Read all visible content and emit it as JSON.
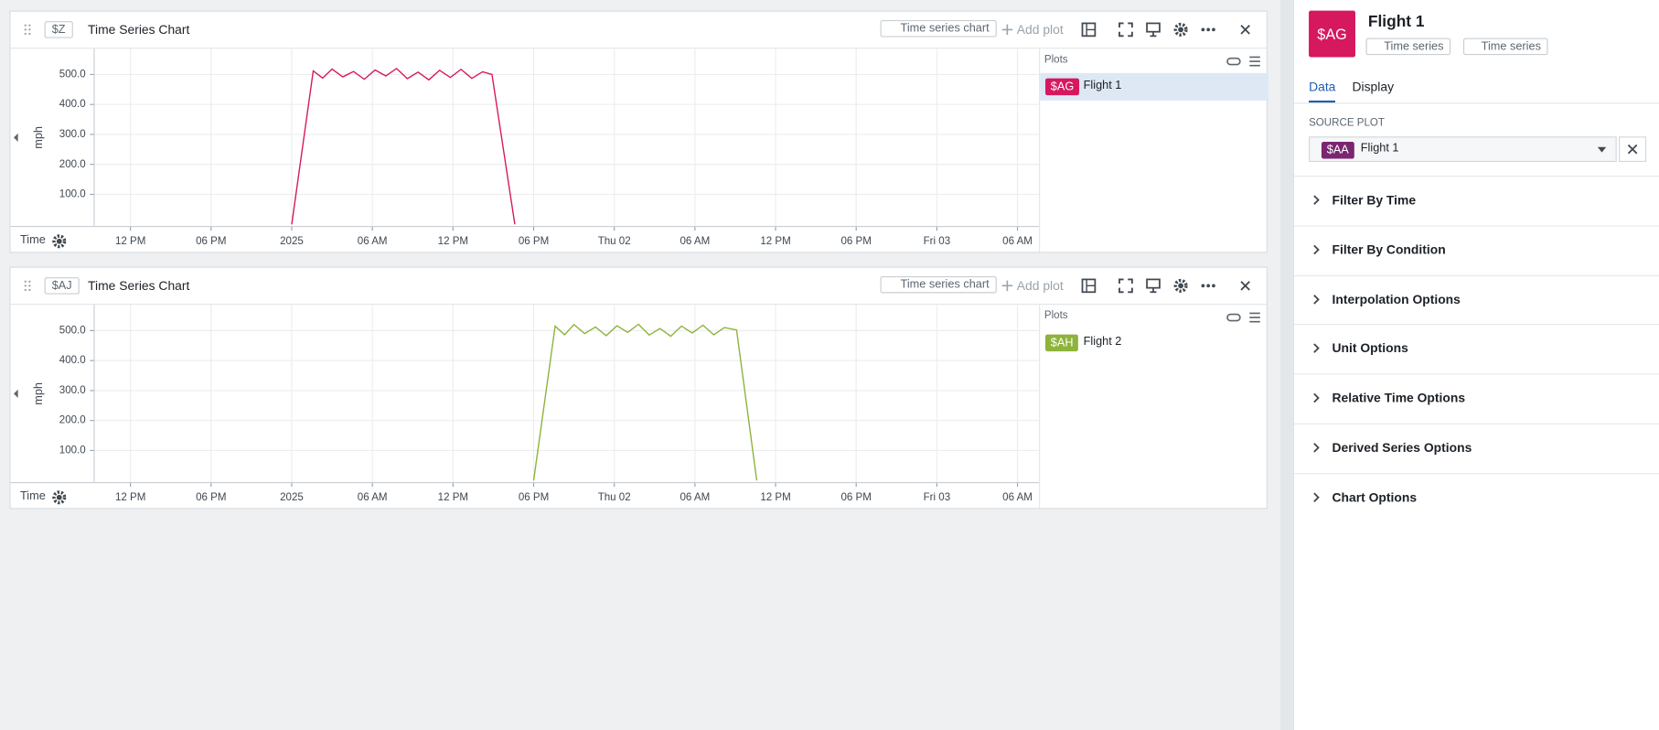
{
  "panels": [
    {
      "tag": "$Z",
      "title": "Time Series Chart",
      "chart_type_button": "Time series chart",
      "add_plot": "Add plot",
      "plots_header": "Plots",
      "plot_tags": [
        "$AG"
      ],
      "x_axis_label": "Time",
      "chart_data": {
        "type": "line",
        "y_label": "mph",
        "xlim": [
          9.3,
          79.6
        ],
        "xticks": [
          {
            "value": 12,
            "label": "12 PM"
          },
          {
            "value": 18,
            "label": "06 PM"
          },
          {
            "value": 24,
            "label": "2025"
          },
          {
            "value": 30,
            "label": "06 AM"
          },
          {
            "value": 36,
            "label": "12 PM"
          },
          {
            "value": 42,
            "label": "06 PM"
          },
          {
            "value": 48,
            "label": "Thu 02"
          },
          {
            "value": 54,
            "label": "06 AM"
          },
          {
            "value": 60,
            "label": "12 PM"
          },
          {
            "value": 66,
            "label": "06 PM"
          },
          {
            "value": 72,
            "label": "Fri 03"
          },
          {
            "value": 78,
            "label": "06 AM"
          }
        ],
        "ylim": [
          -7,
          586
        ],
        "yticks": [
          {
            "value": 100,
            "label": "100.0"
          },
          {
            "value": 200,
            "label": "200.0"
          },
          {
            "value": 300,
            "label": "300.0"
          },
          {
            "value": 400,
            "label": "400.0"
          },
          {
            "value": 500,
            "label": "500.0"
          }
        ],
        "grid": true,
        "series": [
          {
            "name": "Flight 1",
            "color": "#d6185f",
            "x": [
              24,
              25.6,
              26.3,
              27,
              27.8,
              28.6,
              29.4,
              30.2,
              31,
              31.8,
              32.6,
              33.4,
              34.2,
              35,
              35.8,
              36.6,
              37.4,
              38.2,
              38.9,
              40.6
            ],
            "values": [
              0,
              512,
              488,
              518,
              492,
              510,
              484,
              515,
              495,
              520,
              486,
              508,
              482,
              514,
              490,
              517,
              487,
              509,
              500,
              0
            ]
          }
        ]
      }
    },
    {
      "tag": "$AJ",
      "title": "Time Series Chart",
      "chart_type_button": "Time series chart",
      "add_plot": "Add plot",
      "plots_header": "Plots",
      "plot_tags": [
        "$AH"
      ],
      "x_axis_label": "Time",
      "chart_data": {
        "type": "line",
        "y_label": "mph",
        "xlim": [
          9.3,
          79.6
        ],
        "xticks": [
          {
            "value": 12,
            "label": "12 PM"
          },
          {
            "value": 18,
            "label": "06 PM"
          },
          {
            "value": 24,
            "label": "2025"
          },
          {
            "value": 30,
            "label": "06 AM"
          },
          {
            "value": 36,
            "label": "12 PM"
          },
          {
            "value": 42,
            "label": "06 PM"
          },
          {
            "value": 48,
            "label": "Thu 02"
          },
          {
            "value": 54,
            "label": "06 AM"
          },
          {
            "value": 60,
            "label": "12 PM"
          },
          {
            "value": 66,
            "label": "06 PM"
          },
          {
            "value": 72,
            "label": "Fri 03"
          },
          {
            "value": 78,
            "label": "06 AM"
          }
        ],
        "ylim": [
          -7,
          586
        ],
        "yticks": [
          {
            "value": 100,
            "label": "100.0"
          },
          {
            "value": 200,
            "label": "200.0"
          },
          {
            "value": 300,
            "label": "300.0"
          },
          {
            "value": 400,
            "label": "400.0"
          },
          {
            "value": 500,
            "label": "500.0"
          }
        ],
        "grid": true,
        "series": [
          {
            "name": "Flight 2",
            "color": "#8db33b",
            "x": [
              42,
              43.6,
              44.3,
              45,
              45.8,
              46.6,
              47.4,
              48.2,
              49,
              49.8,
              50.6,
              51.4,
              52.2,
              53,
              53.8,
              54.6,
              55.4,
              56.2,
              57.1,
              58.6
            ],
            "values": [
              0,
              515,
              486,
              520,
              490,
              512,
              483,
              516,
              494,
              521,
              485,
              507,
              481,
              515,
              492,
              518,
              486,
              510,
              502,
              0
            ]
          }
        ]
      }
    }
  ],
  "sidebar": {
    "tag": "$AG",
    "title": "Flight 1",
    "breadcrumb": [
      "Time series",
      "Time series"
    ],
    "tabs": [
      "Data",
      "Display"
    ],
    "source_plot_label": "SOURCE PLOT",
    "source_plot": {
      "tag": "$AA",
      "name": "Flight 1"
    },
    "sections": [
      "Filter By Time",
      "Filter By Condition",
      "Interpolation Options",
      "Unit Options",
      "Relative Time Options",
      "Derived Series Options",
      "Chart Options"
    ]
  }
}
